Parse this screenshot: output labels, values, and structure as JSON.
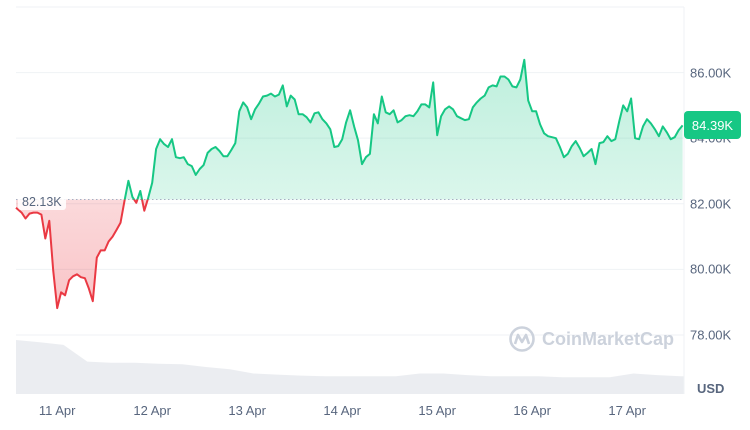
{
  "chart_data": {
    "type": "area",
    "currency_label": "USD",
    "baseline_value": 82.13,
    "baseline_label": "82.13K",
    "current_value": 84.39,
    "current_label": "84.39K",
    "ylim": [
      76.2,
      88.0
    ],
    "y_ticks": [
      {
        "value": 78,
        "label": "78.00K"
      },
      {
        "value": 80,
        "label": "80.00K"
      },
      {
        "value": 82,
        "label": "82.00K"
      },
      {
        "value": 84,
        "label": "84.00K"
      },
      {
        "value": 86,
        "label": "86.00K"
      }
    ],
    "x_ticks": [
      "11 Apr",
      "12 Apr",
      "13 Apr",
      "14 Apr",
      "15 Apr",
      "16 Apr",
      "17 Apr"
    ],
    "x_start": "10 Apr 14:00",
    "x_interval_minutes": 60,
    "grid": true,
    "colors": {
      "up": "#16c784",
      "down": "#ea3943",
      "grid": "#eff2f5",
      "volume": "#e8eaee",
      "text": "#58667e"
    },
    "price_k_usd": [
      81.88,
      81.73,
      81.55,
      81.7,
      81.73,
      81.73,
      81.67,
      80.94,
      81.48,
      79.97,
      78.82,
      79.3,
      79.21,
      79.67,
      79.79,
      79.85,
      79.76,
      79.73,
      79.42,
      79.03,
      80.36,
      80.58,
      80.58,
      80.85,
      81.0,
      81.21,
      81.42,
      82.09,
      82.7,
      82.21,
      82.03,
      82.39,
      81.79,
      82.18,
      82.64,
      83.67,
      83.97,
      83.82,
      83.73,
      83.97,
      83.42,
      83.39,
      83.42,
      83.21,
      83.15,
      82.88,
      83.06,
      83.18,
      83.55,
      83.67,
      83.73,
      83.61,
      83.45,
      83.45,
      83.64,
      83.85,
      84.82,
      85.09,
      84.94,
      84.58,
      84.88,
      85.06,
      85.27,
      85.3,
      85.36,
      85.27,
      85.33,
      85.61,
      84.97,
      85.3,
      85.18,
      84.73,
      84.73,
      84.64,
      84.48,
      84.76,
      84.79,
      84.58,
      84.45,
      84.27,
      83.73,
      83.76,
      83.97,
      84.48,
      84.85,
      84.36,
      83.94,
      83.21,
      83.42,
      83.52,
      84.73,
      84.45,
      85.27,
      84.79,
      84.73,
      84.85,
      84.48,
      84.55,
      84.67,
      84.7,
      84.67,
      84.82,
      85.03,
      85.03,
      84.94,
      85.7,
      84.09,
      84.67,
      84.88,
      84.97,
      84.88,
      84.67,
      84.61,
      84.55,
      84.58,
      84.94,
      85.09,
      85.21,
      85.3,
      85.55,
      85.61,
      85.58,
      85.88,
      85.88,
      85.79,
      85.58,
      85.55,
      85.79,
      86.39,
      85.15,
      84.82,
      84.82,
      84.42,
      84.15,
      84.06,
      84.03,
      84.0,
      83.73,
      83.42,
      83.52,
      83.76,
      83.91,
      83.7,
      83.45,
      83.55,
      83.67,
      83.21,
      83.85,
      83.88,
      84.06,
      83.91,
      83.97,
      84.52,
      85.0,
      84.82,
      85.21,
      84.0,
      83.97,
      84.36,
      84.58,
      84.45,
      84.27,
      84.06,
      84.36,
      84.18,
      83.97,
      84.03,
      84.24,
      84.39
    ],
    "volume_relative_6h": [
      1.0,
      0.96,
      0.91,
      0.6,
      0.58,
      0.58,
      0.56,
      0.55,
      0.5,
      0.46,
      0.38,
      0.36,
      0.34,
      0.33,
      0.33,
      0.33,
      0.33,
      0.38,
      0.38,
      0.35,
      0.33,
      0.33,
      0.33,
      0.31,
      0.31,
      0.31,
      0.38,
      0.35,
      0.33
    ]
  },
  "watermark": {
    "text": "CoinMarketCap"
  }
}
